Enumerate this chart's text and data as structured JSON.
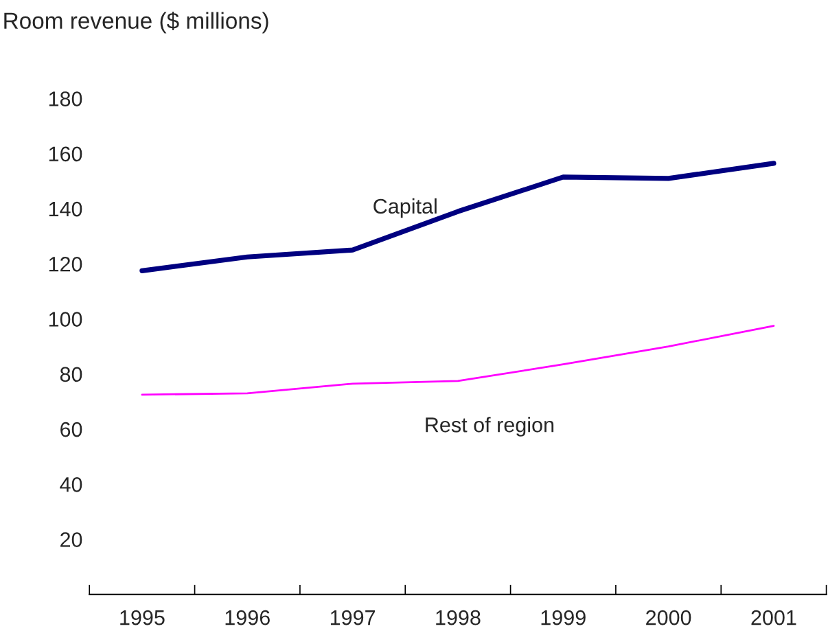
{
  "chart_data": {
    "type": "line",
    "ylabel": "Room revenue ($ millions)",
    "categories": [
      "1995",
      "1996",
      "1997",
      "1998",
      "1999",
      "2000",
      "2001"
    ],
    "series": [
      {
        "name": "Capital",
        "color": "#000080",
        "values": [
          117.5,
          122.5,
          125,
          139,
          151.5,
          151,
          156.5
        ]
      },
      {
        "name": "Rest of region",
        "color": "#ff00ff",
        "values": [
          72.5,
          73,
          76.5,
          77.5,
          83.5,
          90,
          97.5
        ]
      }
    ],
    "ylim": [
      0,
      180
    ],
    "yticks": [
      20,
      40,
      60,
      80,
      100,
      120,
      140,
      160,
      180
    ],
    "grid": false,
    "legend": false,
    "marker": "none",
    "line_style": "solid"
  }
}
